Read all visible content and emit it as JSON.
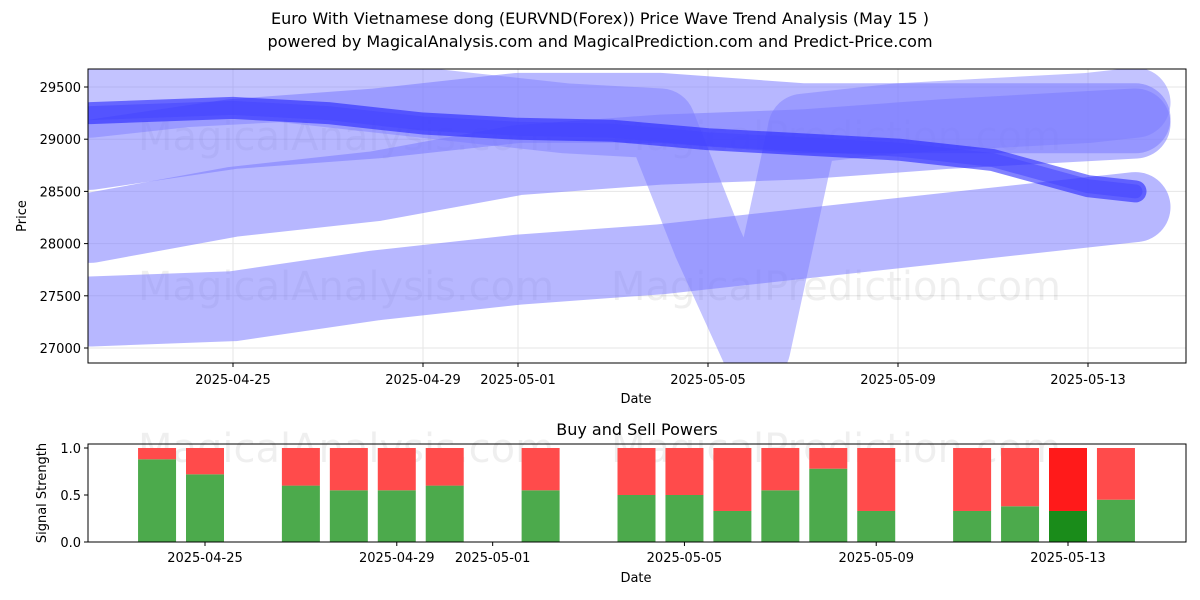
{
  "title": "Euro With Vietnamese dong (EURVND(Forex)) Price Wave Trend Analysis (May 15 )",
  "subtitle": "powered by MagicalAnalysis.com and MagicalPrediction.com and Predict-Price.com",
  "watermarks": [
    "MagicalAnalysis.com",
    "MagicalPrediction.com"
  ],
  "colors": {
    "band": "#7b7bff",
    "core": "#1a1aff",
    "buy": "#4caa4c",
    "sell": "#ff4b4b",
    "buy_strong": "#1a8c1a",
    "sell_strong": "#ff1a1a"
  },
  "chart_data": [
    {
      "type": "area",
      "title": "",
      "xlabel": "Date",
      "ylabel": "Price",
      "ylim": [
        26850,
        29650
      ],
      "xlim": [
        "2025-04-21",
        "2025-05-15"
      ],
      "x_ticks": [
        "2025-04-25",
        "2025-04-29",
        "2025-05-01",
        "2025-05-05",
        "2025-05-09",
        "2025-05-13"
      ],
      "y_ticks": [
        27000,
        27500,
        28000,
        28500,
        29000,
        29500
      ],
      "grid": true,
      "series": [
        {
          "x": [
            "2025-04-22",
            "2025-04-25",
            "2025-04-27",
            "2025-04-29",
            "2025-05-01",
            "2025-05-03",
            "2025-05-05",
            "2025-05-07",
            "2025-05-09",
            "2025-05-11",
            "2025-05-13",
            "2025-05-14"
          ],
          "values": [
            29250,
            29300,
            29250,
            29150,
            29100,
            29080,
            29000,
            28950,
            28900,
            28800,
            28550,
            28500
          ]
        },
        {
          "x": [
            "2025-04-22",
            "2025-04-25",
            "2025-04-28",
            "2025-05-01",
            "2025-05-04",
            "2025-05-07",
            "2025-05-10",
            "2025-05-14"
          ],
          "values": [
            28850,
            29050,
            29150,
            29300,
            29300,
            29200,
            29200,
            29200
          ]
        },
        {
          "x": [
            "2025-04-22",
            "2025-04-25",
            "2025-04-28",
            "2025-05-01",
            "2025-05-04",
            "2025-05-07",
            "2025-05-10",
            "2025-05-14"
          ],
          "values": [
            28150,
            28400,
            28550,
            28800,
            28900,
            28950,
            29050,
            29150
          ]
        },
        {
          "x": [
            "2025-04-22",
            "2025-04-25",
            "2025-04-28",
            "2025-05-01",
            "2025-05-04",
            "2025-05-07",
            "2025-05-10",
            "2025-05-14"
          ],
          "values": [
            27350,
            27400,
            27600,
            27750,
            27850,
            28000,
            28150,
            28350
          ]
        },
        {
          "x": [
            "2025-04-22",
            "2025-04-24",
            "2025-04-26",
            "2025-04-28",
            "2025-04-30",
            "2025-05-02",
            "2025-05-04",
            "2025-05-05",
            "2025-05-06",
            "2025-05-07",
            "2025-05-09",
            "2025-05-11",
            "2025-05-13",
            "2025-05-14"
          ],
          "values": [
            29350,
            29450,
            29500,
            29400,
            29300,
            29200,
            29150,
            28000,
            27000,
            29100,
            29200,
            29250,
            29300,
            29350
          ]
        }
      ]
    },
    {
      "type": "bar",
      "title": "Buy and Sell Powers",
      "xlabel": "Date",
      "ylabel": "Signal Strength",
      "ylim": [
        0,
        1.05
      ],
      "x_ticks": [
        "2025-04-25",
        "2025-04-29",
        "2025-05-01",
        "2025-05-05",
        "2025-05-09",
        "2025-05-13"
      ],
      "y_ticks": [
        0.0,
        0.5,
        1.0
      ],
      "categories": [
        "2025-04-24",
        "2025-04-25",
        "2025-04-27",
        "2025-04-28",
        "2025-04-29",
        "2025-04-30",
        "2025-05-02",
        "2025-05-04",
        "2025-05-05",
        "2025-05-06",
        "2025-05-07",
        "2025-05-08",
        "2025-05-09",
        "2025-05-11",
        "2025-05-12",
        "2025-05-13",
        "2025-05-14"
      ],
      "series": [
        {
          "values": [
            0.88,
            0.72,
            0.6,
            0.55,
            0.55,
            0.6,
            0.55,
            0.5,
            0.5,
            0.33,
            0.55,
            0.78,
            0.33,
            0.33,
            0.38,
            0.33,
            0.45
          ]
        },
        {
          "values": [
            0.12,
            0.28,
            0.4,
            0.45,
            0.45,
            0.4,
            0.45,
            0.5,
            0.5,
            0.67,
            0.45,
            0.22,
            0.67,
            0.67,
            0.62,
            0.67,
            0.55
          ]
        }
      ],
      "highlight": "2025-05-13"
    }
  ]
}
